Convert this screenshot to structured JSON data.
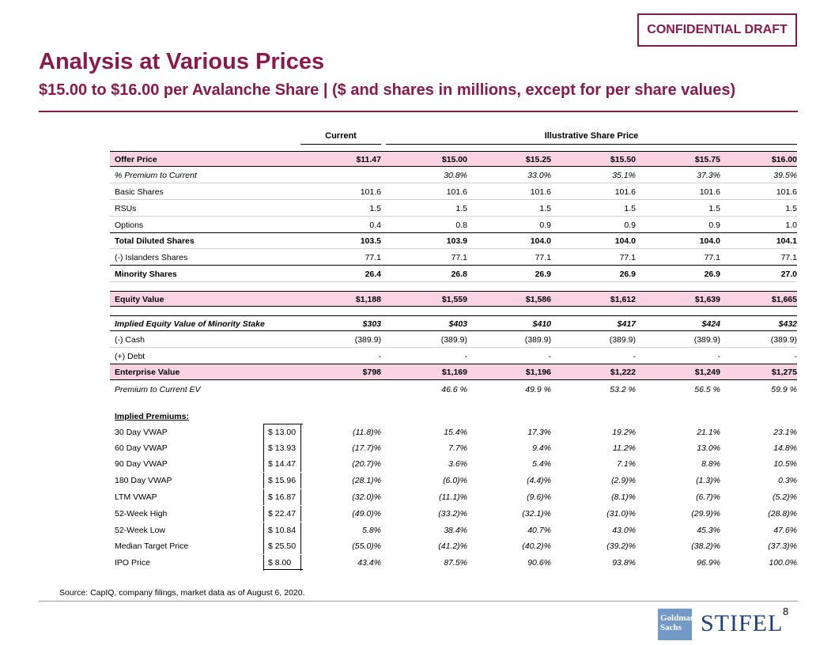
{
  "header": {
    "badge": "CONFIDENTIAL DRAFT",
    "title": "Analysis at Various Prices",
    "subtitle": "$15.00 to $16.00 per Avalanche Share | ($ and shares in millions, except for per share values)"
  },
  "table": {
    "col_current": "Current",
    "col_isp": "Illustrative Share Price",
    "rows": [
      {
        "label": "Offer Price",
        "cur": "$11.47",
        "v": [
          "$15.00",
          "$15.25",
          "$15.50",
          "$15.75",
          "$16.00"
        ]
      },
      {
        "label": "% Premium to Current",
        "cur": "",
        "v": [
          "30.8%",
          "33.0%",
          "35.1%",
          "37.3%",
          "39.5%"
        ]
      },
      {
        "label": "Basic Shares",
        "cur": "101.6",
        "v": [
          "101.6",
          "101.6",
          "101.6",
          "101.6",
          "101.6"
        ]
      },
      {
        "label": "RSUs",
        "cur": "1.5",
        "v": [
          "1.5",
          "1.5",
          "1.5",
          "1.5",
          "1.5"
        ]
      },
      {
        "label": "Options",
        "cur": "0.4",
        "v": [
          "0.8",
          "0.9",
          "0.9",
          "0.9",
          "1.0"
        ]
      },
      {
        "label": "Total Diluted Shares",
        "cur": "103.5",
        "v": [
          "103.9",
          "104.0",
          "104.0",
          "104.0",
          "104.1"
        ]
      },
      {
        "label": "(-) Islanders Shares",
        "cur": "77.1",
        "v": [
          "77.1",
          "77.1",
          "77.1",
          "77.1",
          "77.1"
        ]
      },
      {
        "label": "Minority Shares",
        "cur": "26.4",
        "v": [
          "26.8",
          "26.9",
          "26.9",
          "26.9",
          "27.0"
        ]
      },
      {
        "label": "Equity Value",
        "cur": "$1,188",
        "v": [
          "$1,559",
          "$1,586",
          "$1,612",
          "$1,639",
          "$1,665"
        ]
      },
      {
        "label": "Implied Equity Value of Minority Stake",
        "cur": "$303",
        "v": [
          "$403",
          "$410",
          "$417",
          "$424",
          "$432"
        ]
      },
      {
        "label": "(-) Cash",
        "cur": "(389.9)",
        "v": [
          "(389.9)",
          "(389.9)",
          "(389.9)",
          "(389.9)",
          "(389.9)"
        ]
      },
      {
        "label": "(+) Debt",
        "cur": "-",
        "v": [
          "-",
          "-",
          "-",
          "-",
          "-"
        ]
      },
      {
        "label": "Enterprise Value",
        "cur": "$798",
        "v": [
          "$1,169",
          "$1,196",
          "$1,222",
          "$1,249",
          "$1,275"
        ]
      },
      {
        "label": "Premium to Current EV",
        "cur": "",
        "v": [
          "46.6 %",
          "49.9 %",
          "53.2 %",
          "56.5 %",
          "59.9 %"
        ]
      }
    ],
    "implied_label": "Implied Premiums:",
    "premiums": [
      {
        "label": "30 Day VWAP",
        "ref": "$ 13.00",
        "cur": "(11.8)%",
        "v": [
          "15.4%",
          "17.3%",
          "19.2%",
          "21.1%",
          "23.1%"
        ]
      },
      {
        "label": "60 Day VWAP",
        "ref": "$ 13.93",
        "cur": "(17.7)%",
        "v": [
          "7.7%",
          "9.4%",
          "11.2%",
          "13.0%",
          "14.8%"
        ]
      },
      {
        "label": "90 Day VWAP",
        "ref": "$ 14.47",
        "cur": "(20.7)%",
        "v": [
          "3.6%",
          "5.4%",
          "7.1%",
          "8.8%",
          "10.5%"
        ]
      },
      {
        "label": "180 Day VWAP",
        "ref": "$ 15.96",
        "cur": "(28.1)%",
        "v": [
          "(6.0)%",
          "(4.4)%",
          "(2.9)%",
          "(1.3)%",
          "0.3%"
        ]
      },
      {
        "label": "LTM VWAP",
        "ref": "$ 16.87",
        "cur": "(32.0)%",
        "v": [
          "(11.1)%",
          "(9.6)%",
          "(8.1)%",
          "(6.7)%",
          "(5.2)%"
        ]
      },
      {
        "label": "52-Week High",
        "ref": "$ 22.47",
        "cur": "(49.0)%",
        "v": [
          "(33.2)%",
          "(32.1)%",
          "(31.0)%",
          "(29.9)%",
          "(28.8)%"
        ]
      },
      {
        "label": "52-Week Low",
        "ref": "$ 10.84",
        "cur": "5.8%",
        "v": [
          "38.4%",
          "40.7%",
          "43.0%",
          "45.3%",
          "47.6%"
        ]
      },
      {
        "label": "Median Target Price",
        "ref": "$ 25.50",
        "cur": "(55.0)%",
        "v": [
          "(41.2)%",
          "(40.2)%",
          "(39.2)%",
          "(38.2)%",
          "(37.3)%"
        ]
      },
      {
        "label": "IPO Price",
        "ref": "$ 8.00",
        "cur": "43.4%",
        "v": [
          "87.5%",
          "90.6%",
          "93.8%",
          "96.9%",
          "100.0%"
        ]
      }
    ]
  },
  "footer": {
    "source": "Source: CapIQ, company filings, market data as of August 6, 2020.",
    "page": "8",
    "logo_gs_line1": "Goldman",
    "logo_gs_line2": "Sachs",
    "logo_stifel": "STIFEL"
  }
}
